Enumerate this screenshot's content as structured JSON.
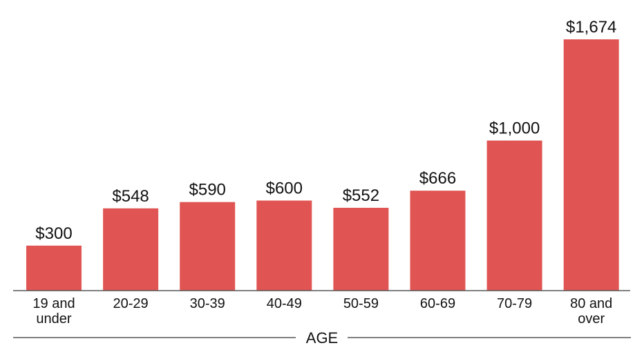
{
  "chart_data": {
    "type": "bar",
    "categories": [
      "19 and under",
      "20-29",
      "30-39",
      "40-49",
      "50-59",
      "60-69",
      "70-79",
      "80 and over"
    ],
    "category_lines": [
      [
        "19 and",
        "under"
      ],
      [
        "20-29"
      ],
      [
        "30-39"
      ],
      [
        "40-49"
      ],
      [
        "50-59"
      ],
      [
        "60-69"
      ],
      [
        "70-79"
      ],
      [
        "80 and",
        "over"
      ]
    ],
    "values": [
      300,
      548,
      590,
      600,
      552,
      666,
      1000,
      1674
    ],
    "value_labels": [
      "$300",
      "$548",
      "$590",
      "$600",
      "$552",
      "$666",
      "$1,000",
      "$1,674"
    ],
    "title": "",
    "xlabel": "AGE",
    "ylabel": "",
    "ylim": [
      0,
      1674
    ],
    "grid": false,
    "legend": "none",
    "bar_color": "#e05553"
  }
}
